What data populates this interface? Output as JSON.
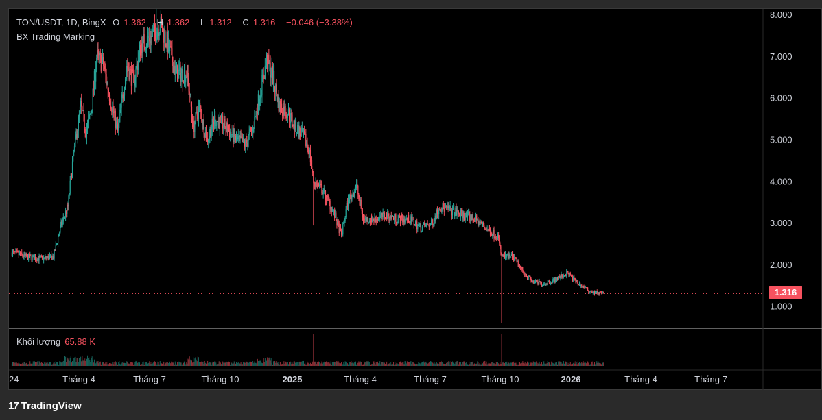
{
  "legend": {
    "pair": "TON/USDT, 1D, BingX",
    "open_label": "O",
    "open": "1.362",
    "high_label": "H",
    "high": "1.362",
    "low_label": "L",
    "low": "1.312",
    "close_label": "C",
    "close": "1.316",
    "change": "−0.046 (−3.38%)"
  },
  "indicator": "BX Trading Marking",
  "volume": {
    "label": "Khối lượng",
    "value": "65.88 K"
  },
  "last_price_tag": "1.316",
  "footer": {
    "logo_glyph": "17",
    "brand": "TradingView"
  },
  "colors": {
    "up": "#26a69a",
    "down": "#f7525f",
    "background": "#000000",
    "text": "#d1d4dc"
  },
  "chart_data": {
    "type": "candlestick",
    "symbol": "TON/USDT",
    "interval": "1D",
    "exchange": "BingX",
    "y_axis": {
      "ticks": [
        "8.000",
        "7.000",
        "6.000",
        "5.000",
        "4.000",
        "3.000",
        "2.000",
        "1.000"
      ],
      "range": [
        0.5,
        8.15
      ]
    },
    "x_axis": {
      "labels": [
        {
          "text": "24",
          "bold": false
        },
        {
          "text": "Tháng 4",
          "bold": false
        },
        {
          "text": "Tháng 7",
          "bold": false
        },
        {
          "text": "Tháng 10",
          "bold": false
        },
        {
          "text": "2025",
          "bold": true
        },
        {
          "text": "Tháng 4",
          "bold": false
        },
        {
          "text": "Tháng 7",
          "bold": false
        },
        {
          "text": "Tháng 10",
          "bold": false
        },
        {
          "text": "2026",
          "bold": true
        },
        {
          "text": "Tháng 4",
          "bold": false
        },
        {
          "text": "Tháng 7",
          "bold": false
        }
      ]
    },
    "price_path": [
      [
        "2024-01-01",
        2.3
      ],
      [
        "2024-01-20",
        2.2
      ],
      [
        "2024-02-10",
        2.15
      ],
      [
        "2024-02-25",
        2.2
      ],
      [
        "2024-03-05",
        2.9
      ],
      [
        "2024-03-15",
        3.4
      ],
      [
        "2024-03-22",
        4.6
      ],
      [
        "2024-04-01",
        5.8
      ],
      [
        "2024-04-08",
        5.2
      ],
      [
        "2024-04-15",
        5.7
      ],
      [
        "2024-04-22",
        7.0
      ],
      [
        "2024-05-01",
        6.8
      ],
      [
        "2024-05-10",
        6.0
      ],
      [
        "2024-05-20",
        5.2
      ],
      [
        "2024-06-01",
        6.8
      ],
      [
        "2024-06-10",
        6.4
      ],
      [
        "2024-06-20",
        7.3
      ],
      [
        "2024-07-05",
        7.5
      ],
      [
        "2024-07-15",
        7.8
      ],
      [
        "2024-07-25",
        7.3
      ],
      [
        "2024-08-05",
        6.6
      ],
      [
        "2024-08-20",
        6.6
      ],
      [
        "2024-08-28",
        5.3
      ],
      [
        "2024-09-05",
        5.8
      ],
      [
        "2024-09-15",
        5.0
      ],
      [
        "2024-09-25",
        5.5
      ],
      [
        "2024-10-05",
        5.4
      ],
      [
        "2024-10-15",
        5.2
      ],
      [
        "2024-10-25",
        5.0
      ],
      [
        "2024-11-05",
        4.9
      ],
      [
        "2024-11-15",
        5.3
      ],
      [
        "2024-11-25",
        6.2
      ],
      [
        "2024-12-03",
        6.9
      ],
      [
        "2024-12-10",
        6.6
      ],
      [
        "2024-12-20",
        5.8
      ],
      [
        "2024-12-30",
        5.7
      ],
      [
        "2025-01-10",
        5.3
      ],
      [
        "2025-01-20",
        5.1
      ],
      [
        "2025-01-28",
        4.8
      ],
      [
        "2025-02-03",
        4.0
      ],
      [
        "2025-02-15",
        3.8
      ],
      [
        "2025-03-01",
        3.3
      ],
      [
        "2025-03-12",
        2.7
      ],
      [
        "2025-03-20",
        3.5
      ],
      [
        "2025-04-01",
        3.9
      ],
      [
        "2025-04-10",
        3.1
      ],
      [
        "2025-04-25",
        3.1
      ],
      [
        "2025-05-10",
        3.2
      ],
      [
        "2025-05-25",
        3.1
      ],
      [
        "2025-06-10",
        3.1
      ],
      [
        "2025-06-25",
        2.9
      ],
      [
        "2025-07-10",
        3.0
      ],
      [
        "2025-07-20",
        3.4
      ],
      [
        "2025-08-05",
        3.3
      ],
      [
        "2025-08-20",
        3.2
      ],
      [
        "2025-09-05",
        3.1
      ],
      [
        "2025-09-25",
        2.8
      ],
      [
        "2025-10-05",
        2.7
      ],
      [
        "2025-10-10",
        2.2
      ],
      [
        "2025-10-25",
        2.2
      ],
      [
        "2025-11-05",
        1.9
      ],
      [
        "2025-11-20",
        1.6
      ],
      [
        "2025-12-05",
        1.55
      ],
      [
        "2025-12-20",
        1.65
      ],
      [
        "2026-01-05",
        1.8
      ],
      [
        "2026-01-20",
        1.55
      ],
      [
        "2026-02-01",
        1.4
      ],
      [
        "2026-02-10",
        1.35
      ],
      [
        "2026-02-22",
        1.316
      ]
    ],
    "notable_wicks": [
      {
        "date": "2025-10-10",
        "low": 0.6
      },
      {
        "date": "2025-02-03",
        "low": 2.95
      },
      {
        "date": "2024-07-10",
        "high": 8.2
      }
    ],
    "volume_unit": "K",
    "last_volume": 65.88,
    "last_price": 1.316
  }
}
